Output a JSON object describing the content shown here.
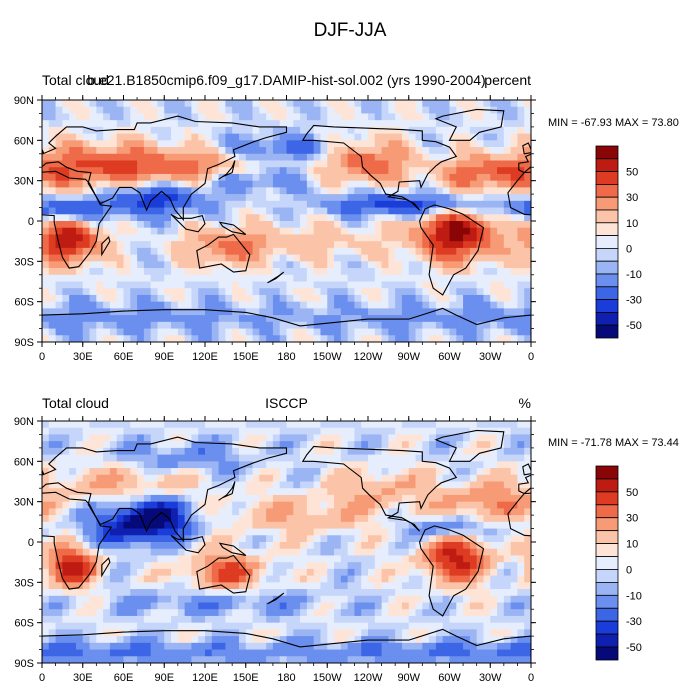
{
  "figure": {
    "title": "DJF-JJA"
  },
  "colors": {
    "palette": [
      "#060a78",
      "#0f1fb0",
      "#1a3cd8",
      "#3d66e6",
      "#6a8fee",
      "#9bb5f4",
      "#c6d6fa",
      "#e6eefd",
      "#fde4d6",
      "#fbc4a8",
      "#f79a76",
      "#ee6a48",
      "#dd3b22",
      "#be1c12",
      "#8a0606"
    ]
  },
  "chart_data": [
    {
      "type": "heatmap",
      "variable": "Total cloud",
      "source": "b.e21.B1850cmip6.f09_g17.DAMIP-hist-sol.002 (yrs 1990-2004)",
      "units": "percent",
      "stats": "MIN = -67.93 MAX =  73.80",
      "min": -67.93,
      "max": 73.8,
      "x_ticks": [
        "0",
        "30E",
        "60E",
        "90E",
        "120E",
        "150E",
        "180",
        "150W",
        "120W",
        "90W",
        "60W",
        "30W",
        "0"
      ],
      "y_ticks": [
        "90N",
        "60N",
        "30N",
        "0",
        "30S",
        "60S",
        "90S"
      ],
      "colorbar_labels": [
        "50",
        "30",
        "10",
        "0",
        "-10",
        "-30",
        "-50"
      ],
      "colorbar_levels": [
        -60,
        -50,
        -40,
        -30,
        -20,
        -10,
        -5,
        0,
        5,
        10,
        20,
        30,
        40,
        50,
        60
      ],
      "xlim": [
        0,
        360
      ],
      "ylim": [
        -90,
        90
      ]
    },
    {
      "type": "heatmap",
      "variable": "Total cloud",
      "source": "ISCCP",
      "units": "%",
      "stats": "MIN = -71.78 MAX =  73.44",
      "min": -71.78,
      "max": 73.44,
      "x_ticks": [
        "0",
        "30E",
        "60E",
        "90E",
        "120E",
        "150E",
        "180",
        "150W",
        "120W",
        "90W",
        "60W",
        "30W",
        "0"
      ],
      "y_ticks": [
        "90N",
        "60N",
        "30N",
        "0",
        "30S",
        "60S",
        "90S"
      ],
      "colorbar_labels": [
        "50",
        "30",
        "10",
        "0",
        "-10",
        "-30",
        "-50"
      ],
      "colorbar_levels": [
        -60,
        -50,
        -40,
        -30,
        -20,
        -10,
        -5,
        0,
        5,
        10,
        20,
        30,
        40,
        50,
        60
      ],
      "xlim": [
        0,
        360
      ],
      "ylim": [
        -90,
        90
      ]
    }
  ]
}
